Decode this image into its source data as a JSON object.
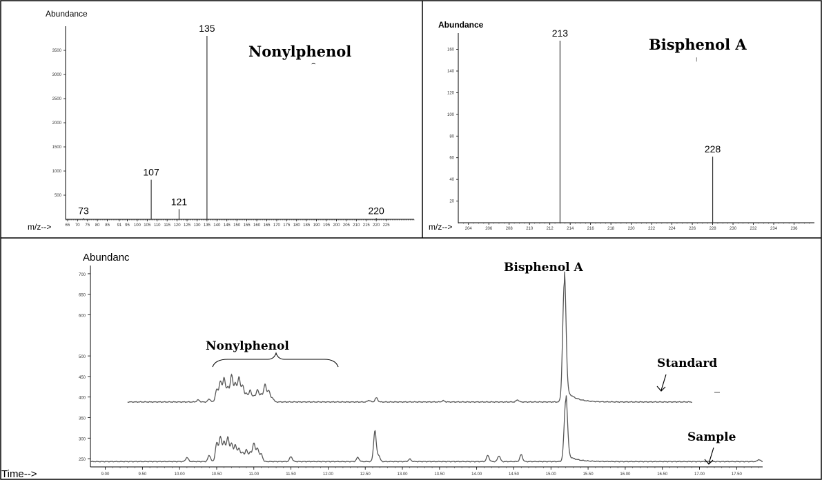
{
  "chart_data": [
    {
      "type": "bar",
      "subtype": "mass-spectrum",
      "title": "Nonylphenol",
      "ylabel": "Abundance",
      "xlabel": "m/z-->",
      "xlim": [
        64,
        239
      ],
      "ylim": [
        0,
        4000
      ],
      "yticks": [
        500,
        1000,
        1500,
        2000,
        2500,
        3000,
        3500
      ],
      "xtick_labels": [
        "65",
        "70",
        "75",
        "80",
        "85",
        "91",
        "95",
        "100",
        "105",
        "110",
        "115",
        "120",
        "125",
        "130",
        "135",
        "140",
        "145",
        "150",
        "155",
        "160",
        "165",
        "170",
        "175",
        "180",
        "185",
        "190",
        "195",
        "200",
        "205",
        "210",
        "215",
        "220",
        "225"
      ],
      "peaks": [
        {
          "mz": 73,
          "value": 25,
          "label": "73"
        },
        {
          "mz": 107,
          "value": 820,
          "label": "107"
        },
        {
          "mz": 121,
          "value": 210,
          "label": "121"
        },
        {
          "mz": 135,
          "value": 3800,
          "label": "135"
        },
        {
          "mz": 220,
          "value": 25,
          "label": "220"
        }
      ]
    },
    {
      "type": "bar",
      "subtype": "mass-spectrum",
      "title": "Bisphenol A",
      "ylabel": "Abundance",
      "xlabel": "m/z-->",
      "xlim": [
        203,
        238
      ],
      "ylim": [
        0,
        175
      ],
      "yticks": [
        20,
        40,
        60,
        80,
        100,
        120,
        140,
        160
      ],
      "xtick_labels": [
        "204",
        "206",
        "208",
        "210",
        "212",
        "214",
        "216",
        "218",
        "220",
        "222",
        "224",
        "226",
        "228",
        "230",
        "232",
        "234",
        "236"
      ],
      "peaks": [
        {
          "mz": 213,
          "value": 168,
          "label": "213"
        },
        {
          "mz": 228,
          "value": 61,
          "label": "228"
        }
      ]
    },
    {
      "type": "line",
      "subtype": "chromatogram",
      "ylabel": "Abundanc",
      "xlabel": "Time-->",
      "xlim": [
        8.8,
        17.85
      ],
      "ylim": [
        230,
        720
      ],
      "yticks": [
        250,
        300,
        350,
        400,
        450,
        500,
        600,
        650,
        700
      ],
      "xticks": [
        "9.00",
        "9.50",
        "10.00",
        "10.50",
        "11.00",
        "11.50",
        "12.00",
        "12.50",
        "13.00",
        "13.50",
        "14.00",
        "14.50",
        "15.00",
        "15.50",
        "16.00",
        "16.50",
        "17.00",
        "17.50"
      ],
      "annotations": [
        "Bisphenol A",
        "Nonylphenol",
        "Standard",
        "Sample"
      ],
      "series": [
        {
          "name": "Standard",
          "baseline": 388,
          "x_range": [
            9.3,
            16.9
          ],
          "peaks": [
            [
              10.25,
              5
            ],
            [
              10.4,
              7
            ],
            [
              10.5,
              30
            ],
            [
              10.55,
              50
            ],
            [
              10.6,
              58
            ],
            [
              10.65,
              35
            ],
            [
              10.7,
              65
            ],
            [
              10.75,
              45
            ],
            [
              10.8,
              60
            ],
            [
              10.85,
              40
            ],
            [
              10.9,
              20
            ],
            [
              10.95,
              28
            ],
            [
              11.0,
              15
            ],
            [
              11.05,
              30
            ],
            [
              11.1,
              18
            ],
            [
              11.15,
              42
            ],
            [
              11.2,
              28
            ],
            [
              11.25,
              10
            ],
            [
              12.55,
              4
            ],
            [
              12.65,
              10
            ],
            [
              13.55,
              3
            ],
            [
              14.55,
              5
            ],
            [
              15.18,
              290
            ]
          ]
        },
        {
          "name": "Sample",
          "baseline": 243,
          "x_range": [
            8.8,
            17.85
          ],
          "peaks": [
            [
              10.1,
              10
            ],
            [
              10.4,
              15
            ],
            [
              10.5,
              45
            ],
            [
              10.55,
              60
            ],
            [
              10.6,
              48
            ],
            [
              10.65,
              58
            ],
            [
              10.7,
              43
            ],
            [
              10.75,
              40
            ],
            [
              10.8,
              32
            ],
            [
              10.85,
              22
            ],
            [
              10.9,
              28
            ],
            [
              10.95,
              22
            ],
            [
              11.0,
              45
            ],
            [
              11.05,
              32
            ],
            [
              11.1,
              18
            ],
            [
              11.5,
              12
            ],
            [
              12.4,
              10
            ],
            [
              12.63,
              75
            ],
            [
              12.68,
              15
            ],
            [
              13.1,
              6
            ],
            [
              14.15,
              15
            ],
            [
              14.3,
              14
            ],
            [
              14.6,
              17
            ],
            [
              15.2,
              150
            ],
            [
              17.8,
              5
            ]
          ]
        }
      ]
    }
  ],
  "colors": {
    "line": "#555555",
    "axis": "#000000",
    "border": "#000000"
  }
}
